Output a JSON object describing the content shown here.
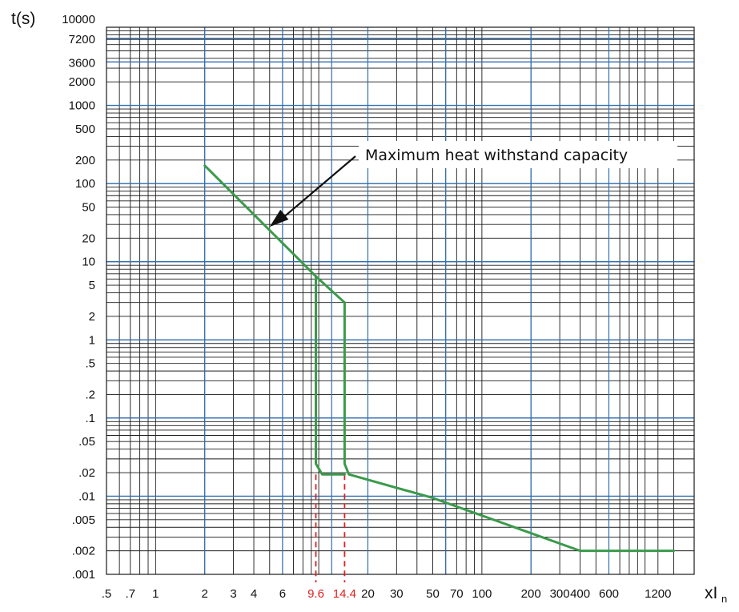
{
  "chart_data": {
    "type": "line",
    "title": "",
    "ylabel": "t(s)",
    "xlabel": {
      "main": "xI",
      "subscript": "n"
    },
    "x_scale": "log",
    "y_scale": "log",
    "xlim": [
      0.5,
      2000
    ],
    "ylim": [
      0.001,
      10000
    ],
    "grid": true,
    "x_tick_labels": [
      ".5",
      ".7",
      "1",
      "2",
      "3",
      "4",
      "6",
      "9.6",
      "14.4",
      "20",
      "30",
      "50",
      "70",
      "100",
      "200",
      "300",
      "400",
      "600",
      "1200"
    ],
    "x_tick_values": [
      0.5,
      0.7,
      1,
      2,
      3,
      4,
      6,
      9.6,
      14.4,
      20,
      30,
      50,
      70,
      100,
      200,
      300,
      400,
      600,
      1200
    ],
    "x_highlight_ticks": [
      "9.6",
      "14.4"
    ],
    "y_tick_labels": [
      "10000",
      "7200",
      "3600",
      "2000",
      "1000",
      "500",
      "200",
      "100",
      "50",
      "20",
      "10",
      "5",
      "2",
      "1",
      ".5",
      ".2",
      ".1",
      ".05",
      ".02",
      ".01",
      ".005",
      ".002",
      ".001"
    ],
    "y_tick_values": [
      10000,
      7200,
      3600,
      2000,
      1000,
      500,
      200,
      100,
      50,
      20,
      10,
      5,
      2,
      1,
      0.5,
      0.2,
      0.1,
      0.05,
      0.02,
      0.01,
      0.005,
      0.002,
      0.001
    ],
    "series": [
      {
        "color": "#3a9a4a",
        "segments": [
          [
            [
              2,
              170
            ],
            [
              9.6,
              6.5
            ]
          ],
          [
            [
              9.6,
              6.5
            ],
            [
              14.4,
              3.0
            ]
          ],
          [
            [
              9.6,
              6.5
            ],
            [
              9.6,
              0.026
            ],
            [
              10.5,
              0.019
            ],
            [
              14.4,
              0.019
            ]
          ],
          [
            [
              14.4,
              3.0
            ],
            [
              14.4,
              0.026
            ],
            [
              15.3,
              0.019
            ],
            [
              50,
              0.0095
            ],
            [
              400,
              0.002
            ],
            [
              1500,
              0.002
            ]
          ]
        ]
      }
    ],
    "reference_lines": [
      {
        "x": 9.6,
        "style": "dashed",
        "color": "#e02020",
        "y_from": 0.019,
        "y_to": 0.001
      },
      {
        "x": 14.4,
        "style": "dashed",
        "color": "#e02020",
        "y_from": 0.019,
        "y_to": 0.001
      }
    ],
    "annotations": [
      {
        "text": "Maximum heat withstand capacity",
        "arrow_to": {
          "x": 5,
          "y": 28
        }
      }
    ],
    "grid_colors": {
      "major": "#2f6fb3",
      "minor": "#1a1a1a"
    }
  }
}
